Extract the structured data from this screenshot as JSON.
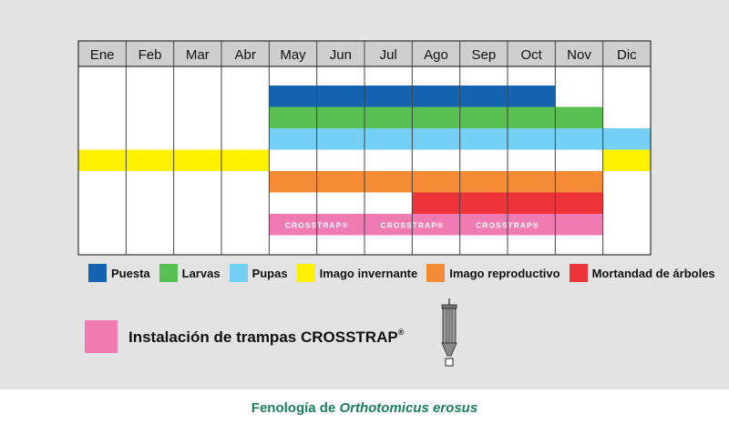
{
  "chart_data": {
    "type": "table",
    "months": [
      "Ene",
      "Feb",
      "Mar",
      "Abr",
      "May",
      "Jun",
      "Jul",
      "Ago",
      "Sep",
      "Oct",
      "Nov",
      "Dic"
    ],
    "series": [
      {
        "name": "Puesta",
        "color": "#1463b0",
        "segments": [
          [
            5,
            10
          ]
        ]
      },
      {
        "name": "Larvas",
        "color": "#58bf52",
        "segments": [
          [
            5,
            11
          ]
        ]
      },
      {
        "name": "Pupas",
        "color": "#74d0f5",
        "segments": [
          [
            5,
            12
          ]
        ]
      },
      {
        "name": "Imago invernante",
        "color": "#fff200",
        "segments": [
          [
            1,
            4
          ],
          [
            12,
            12
          ]
        ]
      },
      {
        "name": "Imago reproductivo",
        "color": "#f58b35",
        "segments": [
          [
            5,
            11
          ]
        ]
      },
      {
        "name": "Mortandad de árboles",
        "color": "#ee3439",
        "segments": [
          [
            8,
            11
          ]
        ]
      }
    ],
    "trap_row": {
      "color": "#f07ab2",
      "segments": [
        [
          5,
          11
        ]
      ],
      "bar_label": "CROSSTRAP®"
    },
    "install_legend": {
      "label": "Instalación de trampas CROSSTRAP",
      "mark": "®"
    },
    "caption_prefix": "Fenología de ",
    "caption_species": "Orthotomicus erosus",
    "grid": true,
    "legend_position": "bottom"
  }
}
